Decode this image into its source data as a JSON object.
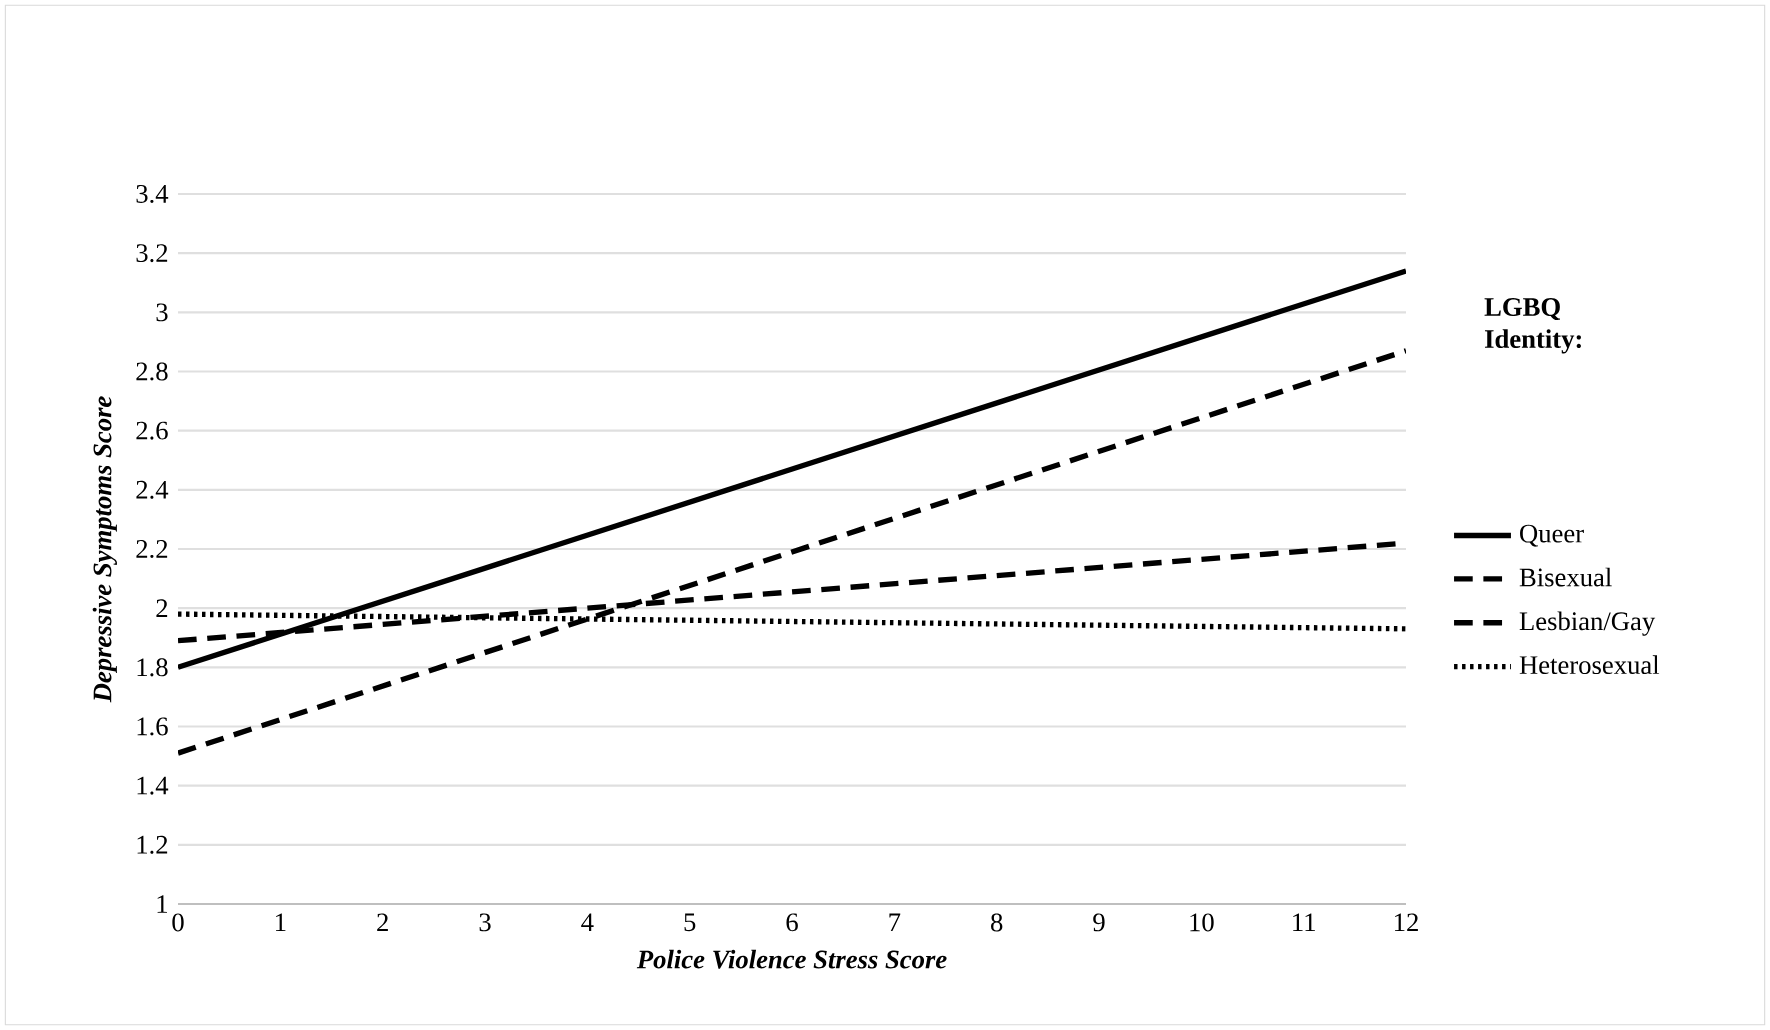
{
  "chart_data": {
    "type": "line",
    "xlabel": "Police Violence Stress Score",
    "ylabel": "Depressive Symptoms Score",
    "legend_title": "LGBQ Identity:",
    "x": [
      0,
      12
    ],
    "series": [
      {
        "name": "Queer",
        "color": "#000000",
        "line_style": "solid",
        "values": [
          1.8,
          3.14
        ]
      },
      {
        "name": "Bisexual",
        "color": "#000000",
        "line_style": "dashed",
        "values": [
          1.51,
          2.87
        ]
      },
      {
        "name": "Lesbian/Gay",
        "color": "#000000",
        "line_style": "dashed",
        "values": [
          1.89,
          2.22
        ]
      },
      {
        "name": "Heterosexual",
        "color": "#000000",
        "line_style": "dotted",
        "values": [
          1.98,
          1.93
        ]
      }
    ],
    "xlim": [
      0,
      12
    ],
    "xticks": [
      0,
      1,
      2,
      3,
      4,
      5,
      6,
      7,
      8,
      9,
      10,
      11,
      12
    ],
    "ylim": [
      1,
      3.4
    ],
    "yticks": [
      1,
      1.2,
      1.4,
      1.6,
      1.8,
      2,
      2.2,
      2.4,
      2.6,
      2.8,
      3,
      3.2,
      3.4
    ],
    "grid": "y",
    "legend": "right",
    "marker": "none"
  }
}
